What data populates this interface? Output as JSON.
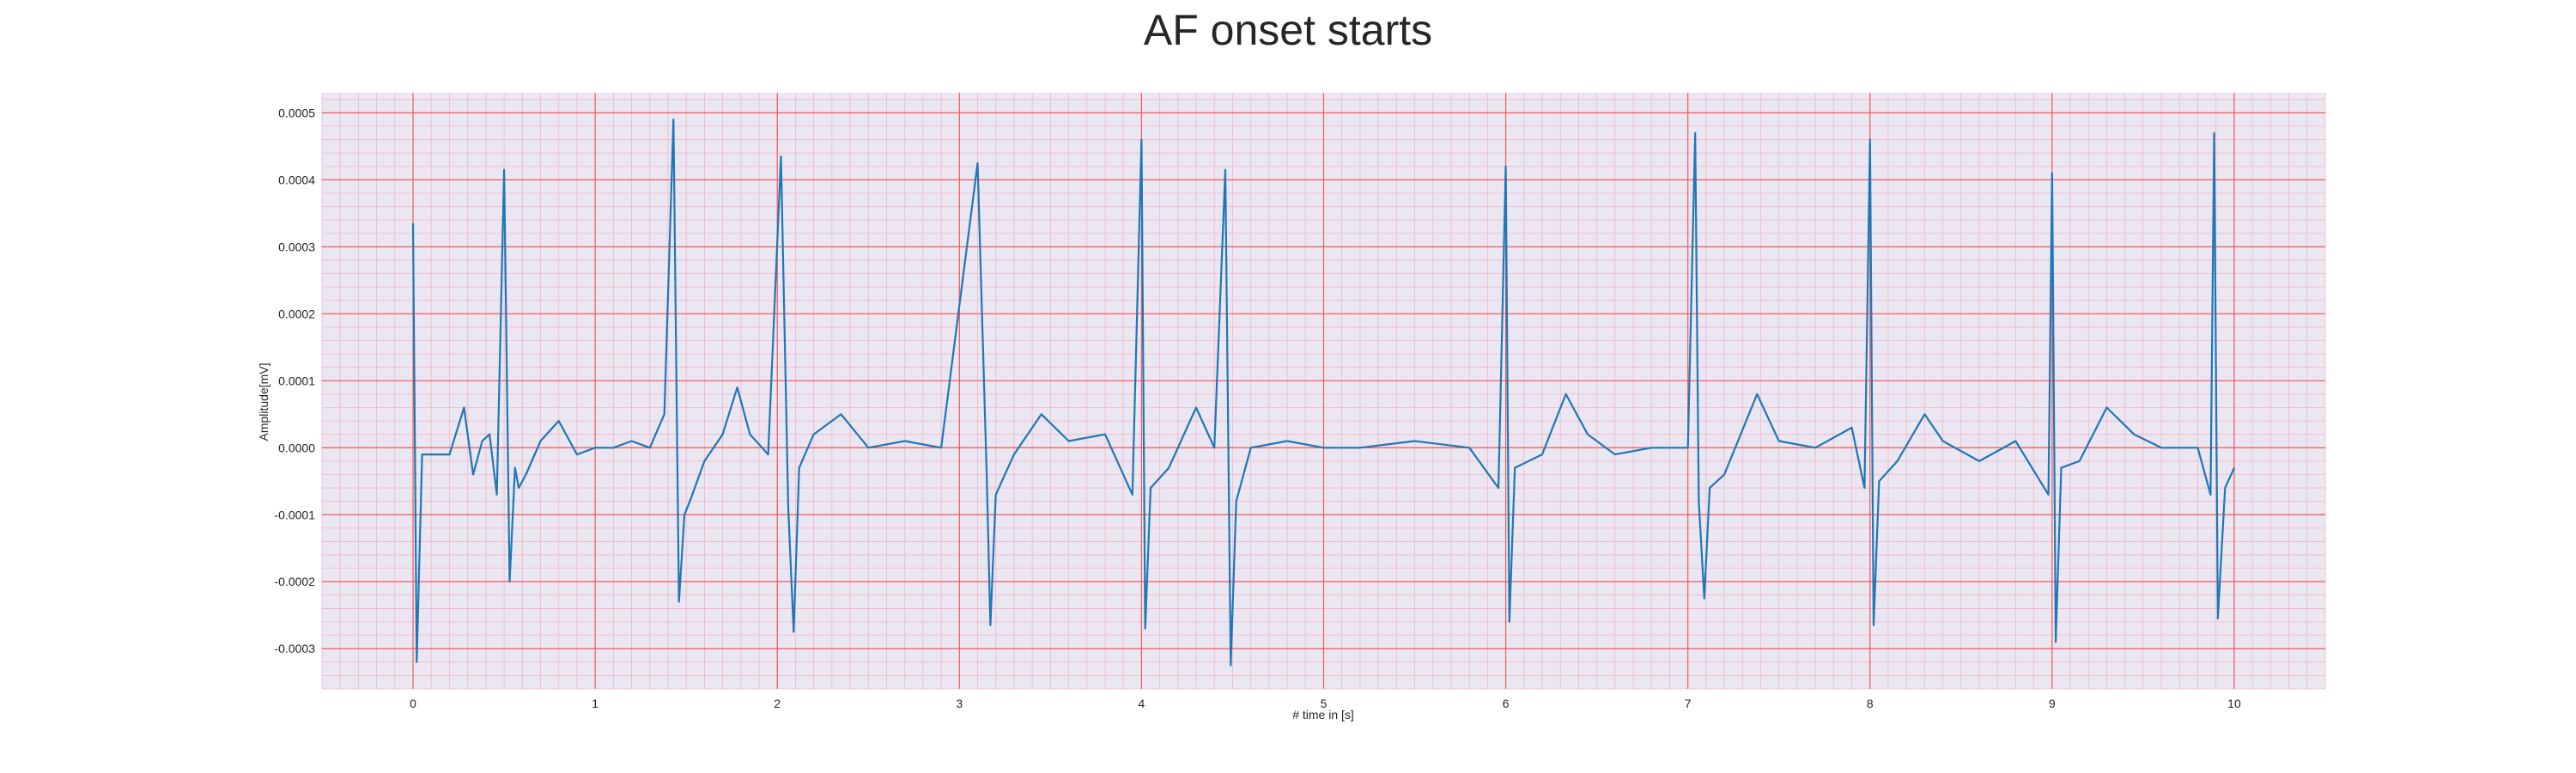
{
  "chart_data": {
    "type": "line",
    "title": "AF onset starts",
    "xlabel": "# time in [s]",
    "ylabel": "Amplitude[mV]",
    "xlim": [
      -0.5,
      10.5
    ],
    "ylim": [
      -0.00036,
      0.00053
    ],
    "xticks": [
      0,
      1,
      2,
      3,
      4,
      5,
      6,
      7,
      8,
      9,
      10
    ],
    "xtick_labels": [
      "0",
      "1",
      "2",
      "3",
      "4",
      "5",
      "6",
      "7",
      "8",
      "9",
      "10"
    ],
    "yticks": [
      0.0005,
      0.0004,
      0.0003,
      0.0002,
      0.0001,
      0.0,
      -0.0001,
      -0.0002,
      -0.0003
    ],
    "ytick_labels": [
      "0.0005",
      "0.0004",
      "0.0003",
      "0.0002",
      "0.0001",
      "0.0000",
      "-0.0001",
      "-0.0002",
      "-0.0003"
    ],
    "grid": "major and minor",
    "colors": {
      "line": "#1f77b4",
      "background": "#eae6f2",
      "major_grid": "#f25a5a",
      "minor_grid": "#f4b7c2"
    },
    "series": [
      {
        "x": [
          0.0,
          0.02,
          0.05,
          0.1,
          0.2,
          0.28,
          0.33,
          0.38,
          0.42,
          0.46,
          0.5,
          0.53,
          0.56,
          0.58,
          0.62,
          0.7,
          0.8,
          0.9,
          1.0,
          1.1,
          1.2,
          1.3,
          1.38,
          1.43,
          1.46,
          1.49,
          1.52,
          1.6,
          1.7,
          1.78,
          1.85,
          1.95,
          2.02,
          2.06,
          2.09,
          2.12,
          2.2,
          2.35,
          2.5,
          2.7,
          2.9,
          3.1,
          3.15,
          3.17,
          3.2,
          3.3,
          3.45,
          3.6,
          3.8,
          3.95,
          4.0,
          4.02,
          4.05,
          4.15,
          4.3,
          4.4,
          4.46,
          4.49,
          4.52,
          4.6,
          4.8,
          5.0,
          5.2,
          5.5,
          5.8,
          5.96,
          6.0,
          6.02,
          6.05,
          6.2,
          6.33,
          6.45,
          6.6,
          6.8,
          7.0,
          7.04,
          7.06,
          7.09,
          7.12,
          7.2,
          7.38,
          7.5,
          7.7,
          7.9,
          7.97,
          8.0,
          8.02,
          8.05,
          8.15,
          8.3,
          8.4,
          8.6,
          8.8,
          8.98,
          9.0,
          9.02,
          9.05,
          9.15,
          9.3,
          9.45,
          9.6,
          9.8,
          9.87,
          9.89,
          9.91,
          9.95,
          10.0
        ],
        "y": [
          0.000335,
          -0.00032,
          -1e-05,
          -1e-05,
          -1e-05,
          6e-05,
          -4e-05,
          1e-05,
          2e-05,
          -7e-05,
          0.000415,
          -0.0002,
          -3e-05,
          -6e-05,
          -4e-05,
          1e-05,
          4e-05,
          -1e-05,
          0.0,
          0.0,
          1e-05,
          0.0,
          5e-05,
          0.00049,
          -0.00023,
          -0.0001,
          -8e-05,
          -2e-05,
          2e-05,
          9e-05,
          2e-05,
          -1e-05,
          0.000435,
          -9e-05,
          -0.000275,
          -3e-05,
          2e-05,
          5e-05,
          0.0,
          1e-05,
          0.0,
          0.000425,
          -4e-05,
          -0.000265,
          -7e-05,
          -1e-05,
          5e-05,
          1e-05,
          2e-05,
          -7e-05,
          0.00046,
          -0.00027,
          -6e-05,
          -3e-05,
          6e-05,
          0.0,
          0.000415,
          -0.000325,
          -8e-05,
          0.0,
          1e-05,
          0.0,
          0.0,
          1e-05,
          0.0,
          -6e-05,
          0.00042,
          -0.00026,
          -3e-05,
          -1e-05,
          8e-05,
          2e-05,
          -1e-05,
          0.0,
          0.0,
          0.00047,
          -8e-05,
          -0.000225,
          -6e-05,
          -4e-05,
          8e-05,
          1e-05,
          0.0,
          3e-05,
          -6e-05,
          0.00046,
          -0.000265,
          -5e-05,
          -2e-05,
          5e-05,
          1e-05,
          -2e-05,
          1e-05,
          -7e-05,
          0.00041,
          -0.00029,
          -3e-05,
          -2e-05,
          6e-05,
          2e-05,
          0.0,
          0.0,
          -7e-05,
          0.00047,
          -0.000255,
          -6e-05,
          -3e-05
        ]
      }
    ]
  }
}
